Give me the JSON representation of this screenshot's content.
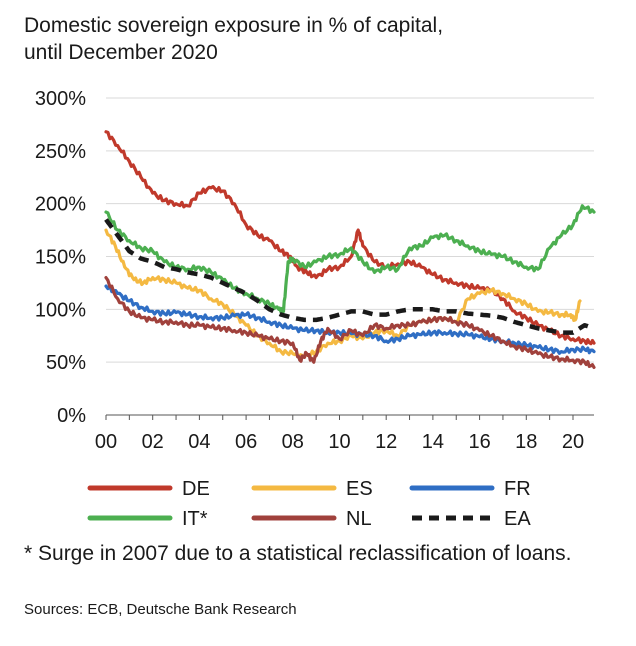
{
  "chart_data": {
    "type": "line",
    "title": "Domestic sovereign exposure in % of capital,",
    "subtitle": "until December 2020",
    "footnote": "* Surge in 2007 due to a statistical reclassification of loans.",
    "source": "Sources: ECB, Deutsche Bank Research",
    "xlabel": "",
    "ylabel": "",
    "xlim": [
      2000,
      2020.9
    ],
    "ylim": [
      0,
      300
    ],
    "x_ticks": [
      0,
      2,
      4,
      6,
      8,
      10,
      12,
      14,
      16,
      18,
      20
    ],
    "x_tick_labels": [
      "00",
      "02",
      "04",
      "06",
      "08",
      "10",
      "12",
      "14",
      "16",
      "18",
      "20"
    ],
    "y_ticks": [
      0,
      50,
      100,
      150,
      200,
      250,
      300
    ],
    "y_tick_labels": [
      "0%",
      "50%",
      "100%",
      "150%",
      "200%",
      "250%",
      "300%"
    ],
    "grid": "horizontal",
    "legend_position": "bottom",
    "series": [
      {
        "name": "DE",
        "color": "#c0392b",
        "dash": "solid",
        "x": [
          2000.0,
          2000.5,
          2001.0,
          2001.5,
          2002.0,
          2002.5,
          2003.0,
          2003.5,
          2004.0,
          2004.5,
          2005.0,
          2005.5,
          2006.0,
          2006.5,
          2007.0,
          2007.5,
          2007.9,
          2008.2,
          2008.6,
          2009.0,
          2009.5,
          2010.0,
          2010.5,
          2010.8,
          2011.0,
          2011.5,
          2012.0,
          2012.5,
          2013.0,
          2013.5,
          2014.0,
          2014.5,
          2015.0,
          2015.5,
          2016.0,
          2016.5,
          2017.0,
          2017.5,
          2018.0,
          2018.5,
          2019.0,
          2019.5,
          2020.0,
          2020.5,
          2020.9
        ],
        "y": [
          268,
          255,
          240,
          225,
          210,
          203,
          200,
          198,
          210,
          215,
          212,
          200,
          180,
          170,
          165,
          155,
          150,
          140,
          135,
          130,
          138,
          140,
          150,
          175,
          160,
          145,
          140,
          143,
          145,
          140,
          133,
          128,
          125,
          122,
          120,
          118,
          110,
          98,
          92,
          85,
          80,
          75,
          72,
          70,
          68
        ]
      },
      {
        "name": "ES",
        "color": "#f4b942",
        "dash": "solid",
        "x": [
          2000.0,
          2000.4,
          2000.8,
          2001.2,
          2001.6,
          2002.0,
          2002.5,
          2003.0,
          2003.5,
          2004.0,
          2004.5,
          2005.0,
          2005.5,
          2006.0,
          2006.5,
          2007.0,
          2007.5,
          2008.0,
          2008.5,
          2009.0,
          2009.5,
          2010.0,
          2010.5,
          2011.0,
          2011.5,
          2012.0,
          2012.5,
          2013.0,
          2013.5,
          2014.0,
          2014.5,
          2015.0,
          2015.5,
          2016.0,
          2016.5,
          2017.0,
          2017.5,
          2018.0,
          2018.5,
          2019.0,
          2019.5,
          2019.9,
          2020.1,
          2020.3
        ],
        "y": [
          175,
          160,
          140,
          128,
          125,
          130,
          128,
          125,
          120,
          118,
          110,
          105,
          95,
          85,
          75,
          68,
          60,
          58,
          55,
          60,
          68,
          70,
          75,
          72,
          78,
          80,
          75,
          85,
          88,
          90,
          92,
          88,
          110,
          115,
          118,
          115,
          110,
          105,
          98,
          97,
          95,
          95,
          90,
          108
        ]
      },
      {
        "name": "FR",
        "color": "#2f6ec4",
        "dash": "solid",
        "x": [
          2000.0,
          2000.5,
          2001.0,
          2001.5,
          2002.0,
          2002.5,
          2003.0,
          2003.5,
          2004.0,
          2004.5,
          2005.0,
          2005.5,
          2006.0,
          2006.5,
          2007.0,
          2007.5,
          2008.0,
          2008.5,
          2009.0,
          2009.5,
          2010.0,
          2010.5,
          2011.0,
          2011.5,
          2012.0,
          2012.5,
          2013.0,
          2013.5,
          2014.0,
          2014.5,
          2015.0,
          2015.5,
          2016.0,
          2016.5,
          2017.0,
          2017.5,
          2018.0,
          2018.5,
          2019.0,
          2019.5,
          2020.0,
          2020.5,
          2020.9
        ],
        "y": [
          122,
          115,
          108,
          102,
          98,
          96,
          97,
          95,
          93,
          92,
          92,
          94,
          95,
          92,
          88,
          85,
          82,
          80,
          80,
          78,
          78,
          77,
          76,
          75,
          70,
          72,
          75,
          76,
          78,
          78,
          77,
          76,
          74,
          72,
          70,
          68,
          66,
          64,
          62,
          60,
          62,
          62,
          60
        ]
      },
      {
        "name": "IT*",
        "color": "#4caf50",
        "dash": "solid",
        "x": [
          2000.0,
          2000.5,
          2001.0,
          2001.5,
          2002.0,
          2002.5,
          2003.0,
          2003.5,
          2004.0,
          2004.5,
          2005.0,
          2005.5,
          2006.0,
          2006.5,
          2007.0,
          2007.4,
          2007.6,
          2007.8,
          2008.0,
          2008.5,
          2009.0,
          2009.5,
          2010.0,
          2010.5,
          2011.0,
          2011.5,
          2012.0,
          2012.5,
          2013.0,
          2013.5,
          2014.0,
          2014.5,
          2015.0,
          2015.5,
          2016.0,
          2016.5,
          2017.0,
          2017.5,
          2018.0,
          2018.5,
          2019.0,
          2019.5,
          2020.0,
          2020.4,
          2020.9
        ],
        "y": [
          192,
          175,
          165,
          158,
          155,
          145,
          140,
          138,
          140,
          135,
          128,
          120,
          115,
          110,
          105,
          100,
          98,
          145,
          148,
          140,
          145,
          150,
          152,
          158,
          145,
          135,
          140,
          138,
          158,
          160,
          168,
          170,
          165,
          160,
          155,
          152,
          150,
          145,
          140,
          138,
          158,
          170,
          180,
          198,
          192
        ]
      },
      {
        "name": "NL",
        "color": "#a0413c",
        "dash": "solid",
        "x": [
          2000.0,
          2000.5,
          2001.0,
          2001.5,
          2002.0,
          2002.5,
          2003.0,
          2003.5,
          2004.0,
          2004.5,
          2005.0,
          2005.5,
          2006.0,
          2006.5,
          2007.0,
          2007.5,
          2008.0,
          2008.3,
          2008.6,
          2008.9,
          2009.2,
          2009.5,
          2010.0,
          2010.5,
          2011.0,
          2011.5,
          2012.0,
          2012.5,
          2013.0,
          2013.5,
          2014.0,
          2014.5,
          2015.0,
          2015.5,
          2016.0,
          2016.5,
          2017.0,
          2017.5,
          2018.0,
          2018.5,
          2019.0,
          2019.5,
          2020.0,
          2020.5,
          2020.9
        ],
        "y": [
          130,
          110,
          98,
          92,
          90,
          88,
          88,
          85,
          85,
          83,
          82,
          80,
          78,
          75,
          72,
          70,
          68,
          52,
          58,
          50,
          70,
          82,
          72,
          80,
          75,
          85,
          82,
          85,
          85,
          88,
          90,
          92,
          88,
          85,
          80,
          75,
          70,
          65,
          62,
          58,
          55,
          53,
          52,
          50,
          45
        ]
      },
      {
        "name": "EA",
        "color": "#1a1a1a",
        "dash": "dashed",
        "x": [
          2000.0,
          2000.5,
          2001.0,
          2001.5,
          2002.0,
          2002.5,
          2003.0,
          2003.5,
          2004.0,
          2004.5,
          2005.0,
          2005.5,
          2006.0,
          2006.5,
          2007.0,
          2007.5,
          2008.0,
          2008.5,
          2009.0,
          2009.5,
          2010.0,
          2010.5,
          2011.0,
          2011.5,
          2012.0,
          2012.5,
          2013.0,
          2013.5,
          2014.0,
          2014.5,
          2015.0,
          2015.5,
          2016.0,
          2016.5,
          2017.0,
          2017.5,
          2018.0,
          2018.5,
          2019.0,
          2019.5,
          2020.0,
          2020.5,
          2020.9
        ],
        "y": [
          185,
          170,
          155,
          148,
          145,
          140,
          138,
          135,
          133,
          130,
          125,
          120,
          115,
          108,
          100,
          95,
          92,
          90,
          90,
          92,
          95,
          98,
          98,
          95,
          95,
          98,
          100,
          100,
          100,
          98,
          98,
          96,
          95,
          94,
          92,
          88,
          85,
          82,
          80,
          78,
          78,
          85,
          82
        ]
      }
    ]
  }
}
